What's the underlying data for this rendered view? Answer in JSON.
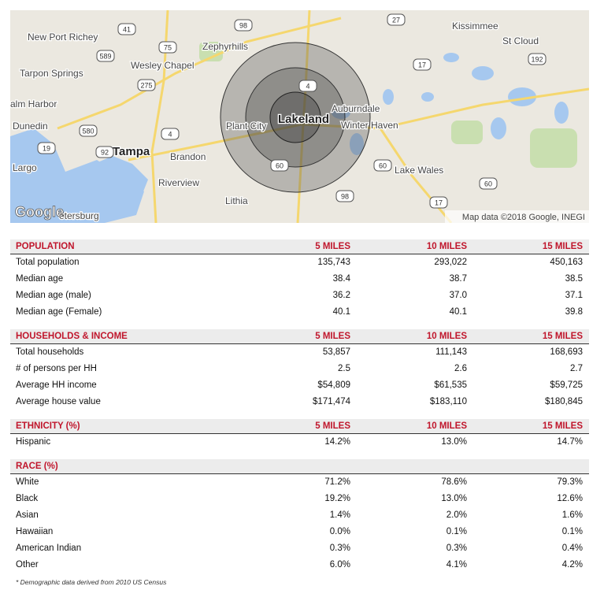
{
  "map": {
    "places": [
      "New Port Richey",
      "Tarpon Springs",
      "alm Harbor",
      "Dunedin",
      "Largo",
      "Tampa",
      "Wesley Chapel",
      "Zephyrhills",
      "Brandon",
      "Riverview",
      "Plant City",
      "Lakeland",
      "Auburndale",
      "Winter Haven",
      "Lake Wales",
      "Lithia",
      "Kissimmee",
      "St Cloud",
      "etersburg"
    ],
    "shields": [
      "41",
      "589",
      "75",
      "98",
      "275",
      "4",
      "580",
      "19",
      "92",
      "27",
      "17",
      "192",
      "4",
      "60",
      "60",
      "98",
      "17",
      "60"
    ],
    "logo": "Google",
    "attribution": "Map data ©2018 Google, INEGI"
  },
  "sections": [
    {
      "title": "POPULATION",
      "columns": [
        "5 MILES",
        "10 MILES",
        "15 MILES"
      ],
      "rows": [
        {
          "label": "Total population",
          "values": [
            "135,743",
            "293,022",
            "450,163"
          ]
        },
        {
          "label": "Median age",
          "values": [
            "38.4",
            "38.7",
            "38.5"
          ]
        },
        {
          "label": "Median age (male)",
          "values": [
            "36.2",
            "37.0",
            "37.1"
          ]
        },
        {
          "label": "Median age (Female)",
          "values": [
            "40.1",
            "40.1",
            "39.8"
          ]
        }
      ]
    },
    {
      "title": "HOUSEHOLDS & INCOME",
      "columns": [
        "5 MILES",
        "10 MILES",
        "15 MILES"
      ],
      "rows": [
        {
          "label": "Total households",
          "values": [
            "53,857",
            "111,143",
            "168,693"
          ]
        },
        {
          "label": "# of persons per HH",
          "values": [
            "2.5",
            "2.6",
            "2.7"
          ]
        },
        {
          "label": "Average HH income",
          "values": [
            "$54,809",
            "$61,535",
            "$59,725"
          ]
        },
        {
          "label": "Average house value",
          "values": [
            "$171,474",
            "$183,110",
            "$180,845"
          ]
        }
      ]
    },
    {
      "title": "ETHNICITY (%)",
      "columns": [
        "5 MILES",
        "10 MILES",
        "15 MILES"
      ],
      "rows": [
        {
          "label": "Hispanic",
          "values": [
            "14.2%",
            "13.0%",
            "14.7%"
          ]
        }
      ]
    },
    {
      "title": "RACE (%)",
      "rows": [
        {
          "label": "White",
          "values": [
            "71.2%",
            "78.6%",
            "79.3%"
          ]
        },
        {
          "label": "Black",
          "values": [
            "19.2%",
            "13.0%",
            "12.6%"
          ]
        },
        {
          "label": "Asian",
          "values": [
            "1.4%",
            "2.0%",
            "1.6%"
          ]
        },
        {
          "label": "Hawaiian",
          "values": [
            "0.0%",
            "0.1%",
            "0.1%"
          ]
        },
        {
          "label": "American Indian",
          "values": [
            "0.3%",
            "0.3%",
            "0.4%"
          ]
        },
        {
          "label": "Other",
          "values": [
            "6.0%",
            "4.1%",
            "4.2%"
          ]
        }
      ]
    }
  ],
  "footnote": "* Demographic data derived from 2010 US Census"
}
